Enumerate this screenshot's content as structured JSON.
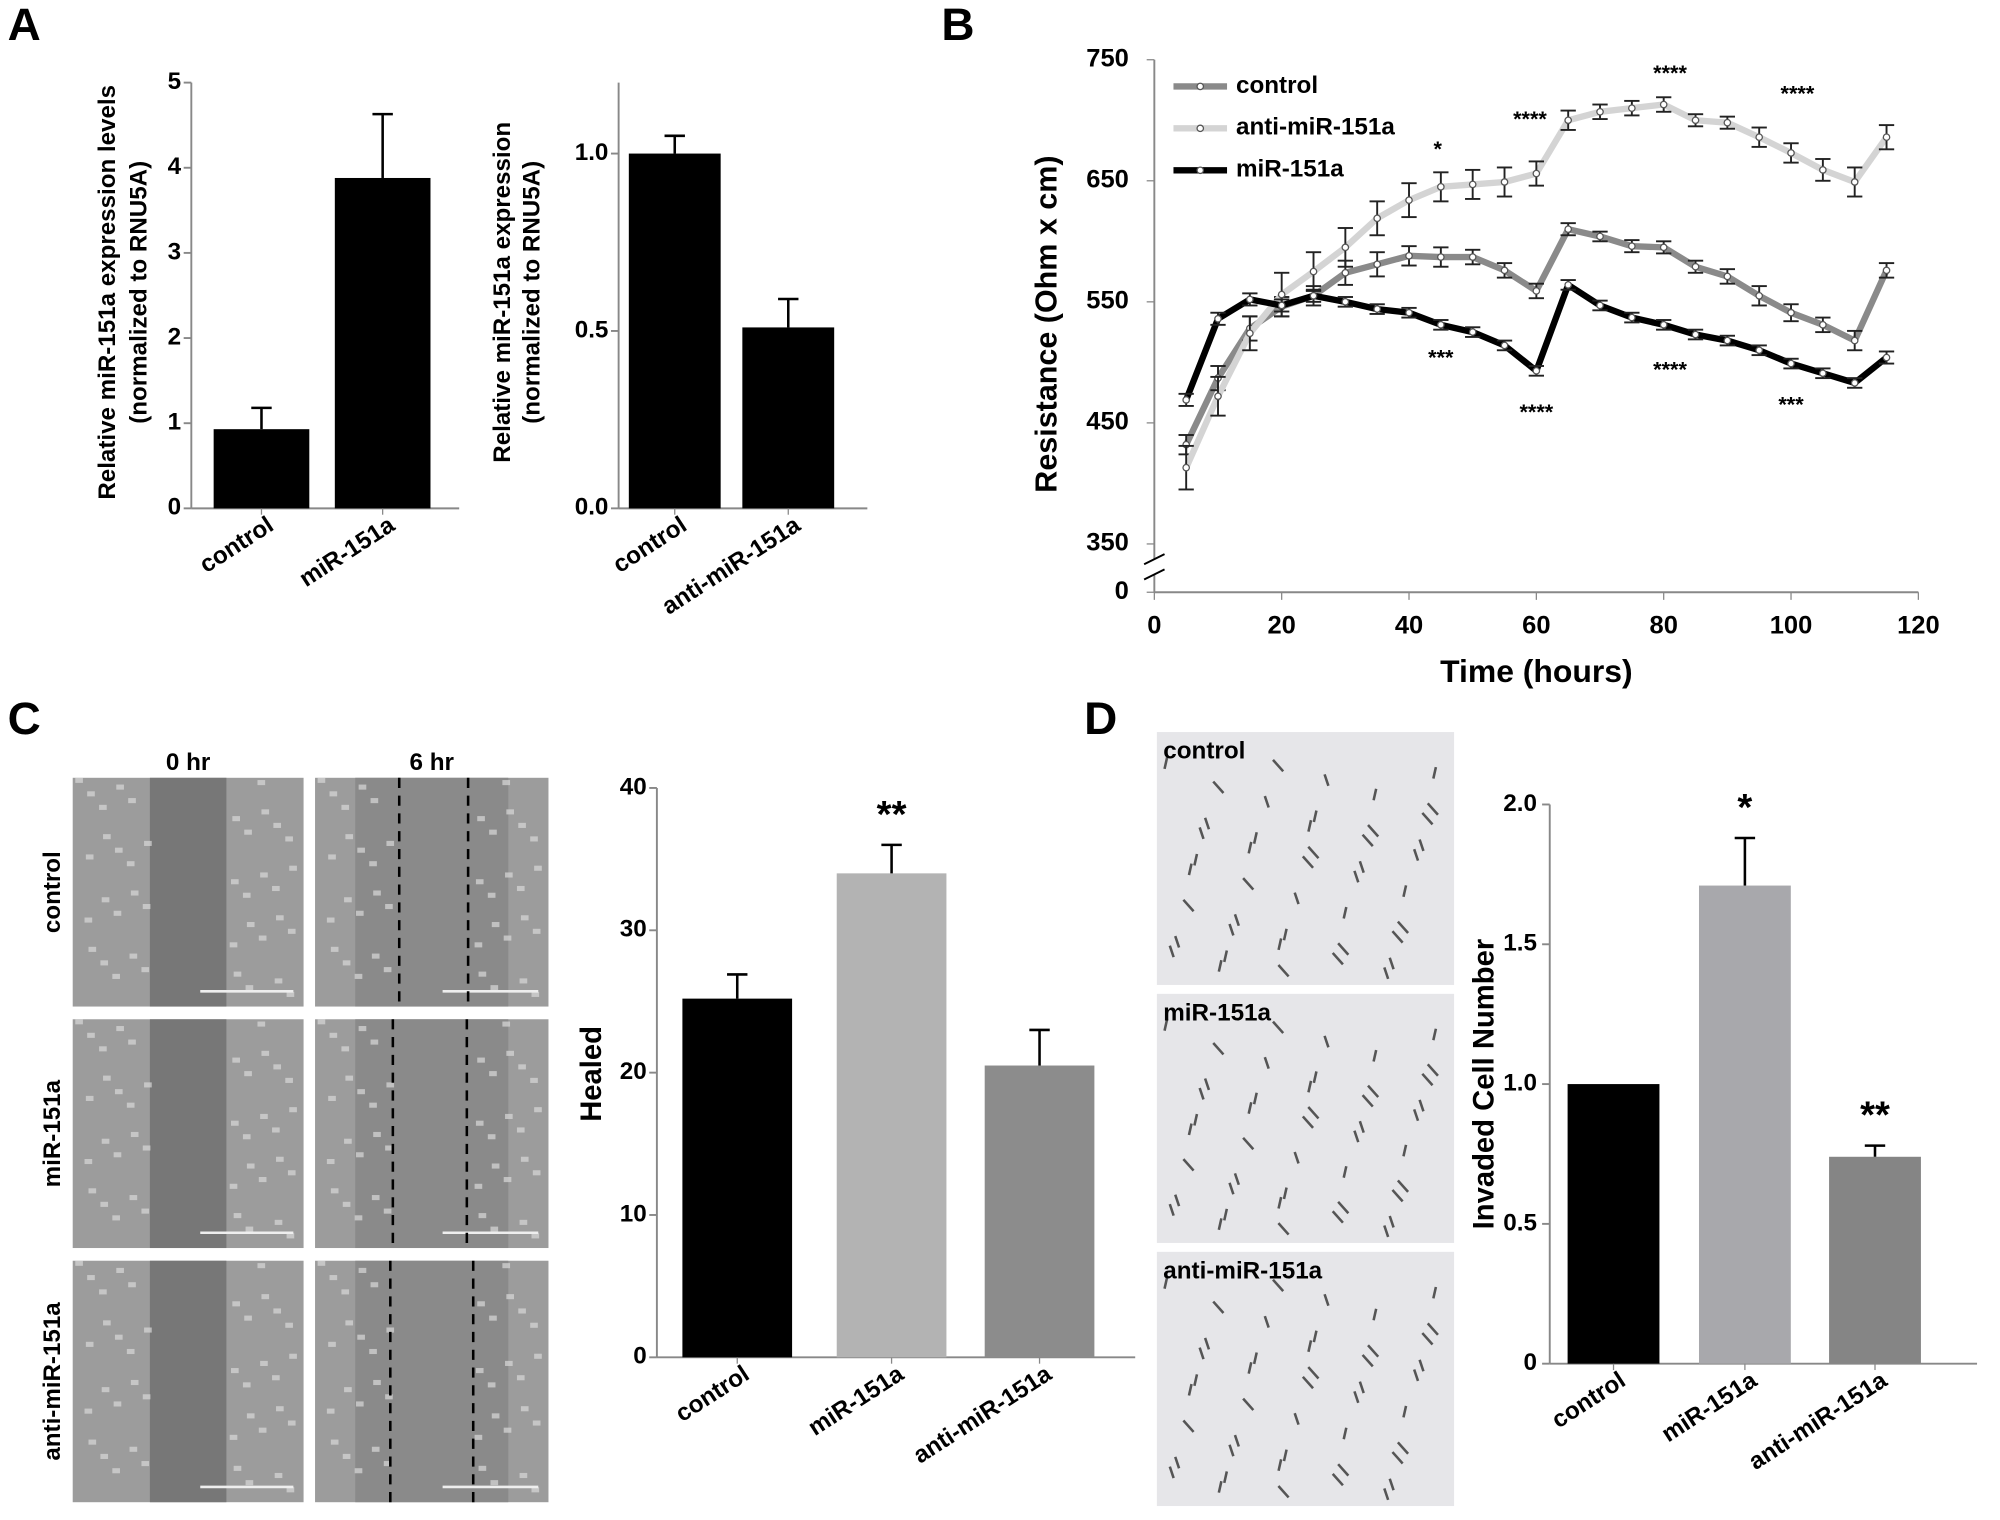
{
  "chart_data": [
    {
      "type": "bar",
      "panel": "A",
      "ylabel": [
        "Relative miR-151a expression levels",
        "(normalized to RNU5A)"
      ],
      "categories": [
        "control",
        "miR-151a"
      ],
      "values": [
        0.93,
        3.88
      ],
      "errors": [
        0.25,
        0.75
      ],
      "colors": [
        "#000000",
        "#000000"
      ],
      "ylim": [
        0,
        5
      ],
      "yticks": [
        0,
        1,
        2,
        3,
        4,
        5
      ]
    },
    {
      "type": "bar",
      "ylabel": [
        "Relative miR-151a expression",
        "(normalized to RNU5A)"
      ],
      "categories": [
        "control",
        "anti-miR-151a"
      ],
      "values": [
        1.0,
        0.51
      ],
      "errors": [
        0.05,
        0.08
      ],
      "colors": [
        "#000000",
        "#000000"
      ],
      "ylim": [
        0,
        1.2
      ],
      "yticks": [
        {
          "value": 0,
          "label": "0.0"
        },
        0.5,
        {
          "value": 1,
          "label": "1.0"
        }
      ]
    },
    {
      "type": "line",
      "panel": "B",
      "ylabel": "Resistance (Ohm x cm)",
      "xlabel": "Time (hours)",
      "xlim": [
        0,
        120
      ],
      "xticks": [
        0,
        20,
        40,
        60,
        80,
        100,
        120
      ],
      "ylim": [
        350,
        750
      ],
      "yticks": [
        350,
        450,
        550,
        650,
        750
      ],
      "y_break_tick": 0,
      "x": [
        5,
        10,
        15,
        20,
        25,
        30,
        35,
        40,
        45,
        50,
        55,
        60,
        65,
        70,
        75,
        80,
        85,
        90,
        95,
        100,
        105,
        110,
        115
      ],
      "series": [
        {
          "name": "control",
          "color": "#8a8a8a",
          "values": [
            432,
            487,
            528,
            546,
            555,
            574,
            581,
            588,
            587,
            587,
            576,
            559,
            610,
            604,
            596,
            595,
            579,
            571,
            555,
            541,
            531,
            518,
            576
          ],
          "errors": [
            8,
            10,
            10,
            8,
            8,
            10,
            10,
            8,
            8,
            6,
            6,
            6,
            5,
            4,
            5,
            5,
            5,
            6,
            8,
            7,
            6,
            8,
            6
          ]
        },
        {
          "name": "anti-miR-151a",
          "color": "#d4d4d4",
          "values": [
            413,
            472,
            524,
            556,
            575,
            595,
            619,
            634,
            645,
            647,
            649,
            656,
            700,
            707,
            710,
            713,
            700,
            698,
            686,
            673,
            659,
            649,
            686
          ],
          "errors": [
            18,
            16,
            14,
            18,
            16,
            16,
            14,
            14,
            12,
            12,
            12,
            10,
            8,
            6,
            6,
            6,
            5,
            5,
            8,
            8,
            9,
            12,
            10
          ]
        },
        {
          "name": "miR-151a",
          "color": "#000000",
          "values": [
            469,
            536,
            552,
            547,
            555,
            550,
            544,
            541,
            531,
            525,
            514,
            493,
            564,
            547,
            537,
            531,
            523,
            518,
            510,
            499,
            491,
            483,
            504
          ],
          "errors": [
            5,
            5,
            5,
            5,
            5,
            4,
            4,
            4,
            4,
            4,
            4,
            4,
            4,
            4,
            4,
            4,
            4,
            4,
            4,
            4,
            4,
            4,
            5
          ]
        }
      ],
      "annotations": [
        {
          "text": "*",
          "x": 44.5,
          "y": 675
        },
        {
          "text": "****",
          "x": 59,
          "y": 700
        },
        {
          "text": "****",
          "x": 81,
          "y": 738
        },
        {
          "text": "****",
          "x": 101,
          "y": 721
        },
        {
          "text": "***",
          "x": 45,
          "y": 503
        },
        {
          "text": "****",
          "x": 60,
          "y": 458
        },
        {
          "text": "****",
          "x": 81,
          "y": 493
        },
        {
          "text": "***",
          "x": 100,
          "y": 464
        }
      ]
    },
    {
      "type": "bar",
      "panel": "C",
      "ylabel": [
        "Healed"
      ],
      "categories": [
        "control",
        "miR-151a",
        "anti-miR-151a"
      ],
      "values": [
        25.2,
        34.0,
        20.5
      ],
      "errors": [
        1.7,
        2.0,
        2.5
      ],
      "colors": [
        "#000000",
        "#b3b3b3",
        "#8c8c8c"
      ],
      "bar_labels": [
        null,
        "**",
        null
      ],
      "ylim": [
        0,
        40
      ],
      "yticks": [
        0,
        10,
        20,
        30,
        40
      ]
    },
    {
      "type": "bar",
      "panel": "D",
      "ylabel": [
        "Invaded Cell Number"
      ],
      "categories": [
        "control",
        "miR-151a",
        "anti-miR-151a"
      ],
      "values": [
        1.0,
        1.71,
        0.74
      ],
      "errors": [
        null,
        0.17,
        0.04
      ],
      "colors": [
        "#000000",
        "#a8a8ac",
        "#858585"
      ],
      "bar_labels": [
        null,
        "*",
        "**"
      ],
      "ylim": [
        0,
        2
      ],
      "yticks": [
        0,
        0.5,
        {
          "value": 1,
          "label": "1.0"
        },
        1.5,
        {
          "value": 2,
          "label": "2.0"
        }
      ]
    }
  ],
  "images": {
    "C": {
      "columns": [
        "0 hr",
        "6 hr"
      ],
      "rows": [
        "control",
        "miR-151a",
        "anti-miR-151a"
      ]
    },
    "D": {
      "rows": [
        "control",
        "miR-151a",
        "anti-miR-151a"
      ]
    }
  }
}
